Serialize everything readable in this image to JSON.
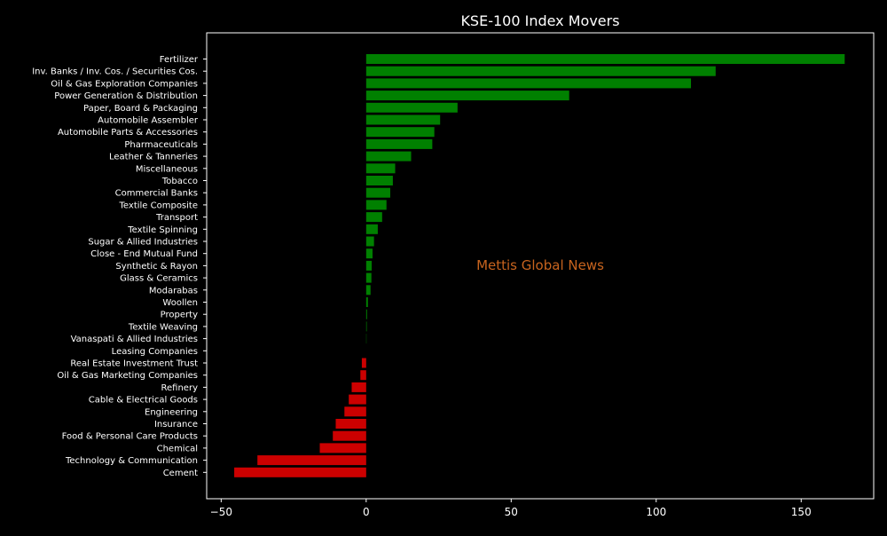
{
  "chart_data": {
    "type": "bar",
    "orientation": "horizontal",
    "title": "KSE-100 Index Movers",
    "xlabel": "",
    "ylabel": "",
    "watermark": "Mettis Global News",
    "xlim": [
      -55,
      175
    ],
    "xticks": [
      -50,
      0,
      50,
      100,
      150
    ],
    "xtick_labels": [
      "−50",
      "0",
      "50",
      "100",
      "150"
    ],
    "grid": false,
    "colors": {
      "positive": "#008000",
      "negative": "#cc0000",
      "background": "#000000",
      "text": "#ffffff",
      "watermark": "#c8641e"
    },
    "categories": [
      "Fertilizer",
      "Inv. Banks / Inv. Cos. / Securities Cos.",
      "Oil & Gas Exploration Companies",
      "Power Generation & Distribution",
      "Paper, Board & Packaging",
      "Automobile Assembler",
      "Automobile Parts & Accessories",
      "Pharmaceuticals",
      "Leather & Tanneries",
      "Miscellaneous",
      "Tobacco",
      "Commercial Banks",
      "Textile Composite",
      "Transport",
      "Textile Spinning",
      "Sugar & Allied Industries",
      "Close - End Mutual Fund",
      "Synthetic & Rayon",
      "Glass & Ceramics",
      "Modarabas",
      "Woollen",
      "Property",
      "Textile Weaving",
      "Vanaspati & Allied Industries",
      "Leasing Companies",
      "Real Estate Investment Trust",
      "Oil & Gas Marketing Companies",
      "Refinery",
      "Cable & Electrical Goods",
      "Engineering",
      "Insurance",
      "Food & Personal Care Products",
      "Chemical",
      "Technology & Communication",
      "Cement"
    ],
    "values": [
      165,
      120.5,
      112,
      70,
      31.5,
      25.5,
      23.5,
      22.8,
      15.5,
      10,
      9.2,
      8.3,
      7,
      5.5,
      4,
      2.7,
      2.2,
      1.9,
      1.8,
      1.5,
      0.6,
      0.3,
      0.2,
      0.1,
      0,
      -1.5,
      -2,
      -5,
      -6,
      -7.5,
      -10.5,
      -11.5,
      -16,
      -37.5,
      -45.5
    ]
  }
}
